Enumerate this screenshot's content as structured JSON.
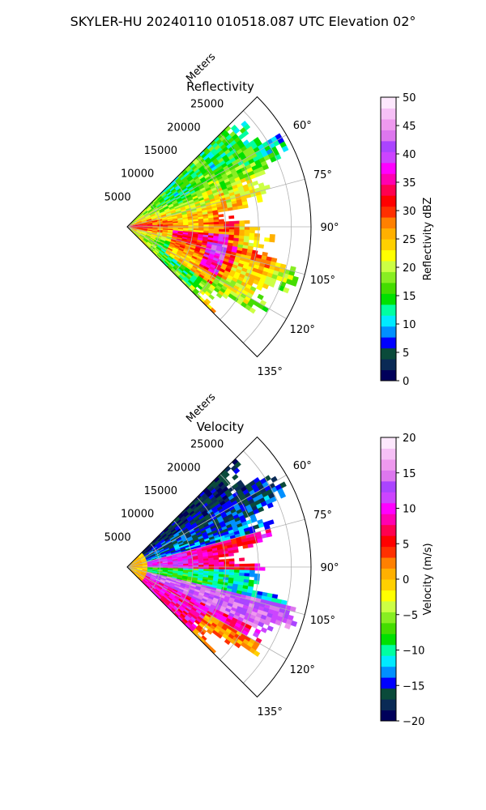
{
  "title": "SKYLER-HU  20240110  010518.087 UTC Elevation 02°",
  "colors": {
    "grid": "#b0b0b0",
    "frame": "#000000",
    "background": "#ffffff"
  },
  "chart_data": [
    {
      "type": "heatmap",
      "projection": "polar-sector",
      "title": "Reflectivity",
      "radial_label": "Meters",
      "radial_ticks": [
        "5000",
        "10000",
        "15000",
        "20000",
        "25000"
      ],
      "theta_ticks": [
        "60°",
        "75°",
        "90°",
        "105°",
        "120°",
        "135°"
      ],
      "theta_range_deg": [
        45,
        135
      ],
      "r_max": 28000,
      "colorbar": {
        "label": "Reflectivity dBZ",
        "ticks": [
          "0",
          "5",
          "10",
          "15",
          "20",
          "25",
          "30",
          "35",
          "40",
          "45",
          "50"
        ],
        "range": [
          0,
          50
        ],
        "stops": [
          "#00005a",
          "#0a2a55",
          "#0a4a3a",
          "#0000ff",
          "#0090ff",
          "#00eaff",
          "#00ffa0",
          "#00e000",
          "#44dd00",
          "#88ee22",
          "#ccff44",
          "#ffff00",
          "#ffd000",
          "#ffb000",
          "#ff8000",
          "#ff3000",
          "#ff0000",
          "#ff0050",
          "#ff00b0",
          "#ff00ff",
          "#cc44ff",
          "#aa44ff",
          "#dd77ee",
          "#ee99ee",
          "#f6c0f6",
          "#fde8fd"
        ]
      }
    },
    {
      "type": "heatmap",
      "projection": "polar-sector",
      "title": "Velocity",
      "radial_label": "Meters",
      "radial_ticks": [
        "5000",
        "10000",
        "15000",
        "20000",
        "25000"
      ],
      "theta_ticks": [
        "60°",
        "75°",
        "90°",
        "105°",
        "120°",
        "135°"
      ],
      "theta_range_deg": [
        45,
        135
      ],
      "r_max": 28000,
      "colorbar": {
        "label": "Velocity (m/s)",
        "ticks": [
          "−20",
          "−15",
          "−10",
          "−5",
          "0",
          "5",
          "10",
          "15",
          "20"
        ],
        "range": [
          -20,
          20
        ],
        "stops": [
          "#00005a",
          "#0a2a55",
          "#0a4a3a",
          "#0000ff",
          "#0090ff",
          "#00eaff",
          "#00ffa0",
          "#00e000",
          "#44dd00",
          "#88ee22",
          "#ccff44",
          "#ffff00",
          "#ffd000",
          "#ffb000",
          "#ff8000",
          "#ff3000",
          "#ff0000",
          "#ff0050",
          "#ff00b0",
          "#ff00ff",
          "#cc44ff",
          "#aa44ff",
          "#dd77ee",
          "#ee99ee",
          "#f6c0f6",
          "#fde8fd"
        ]
      }
    }
  ]
}
